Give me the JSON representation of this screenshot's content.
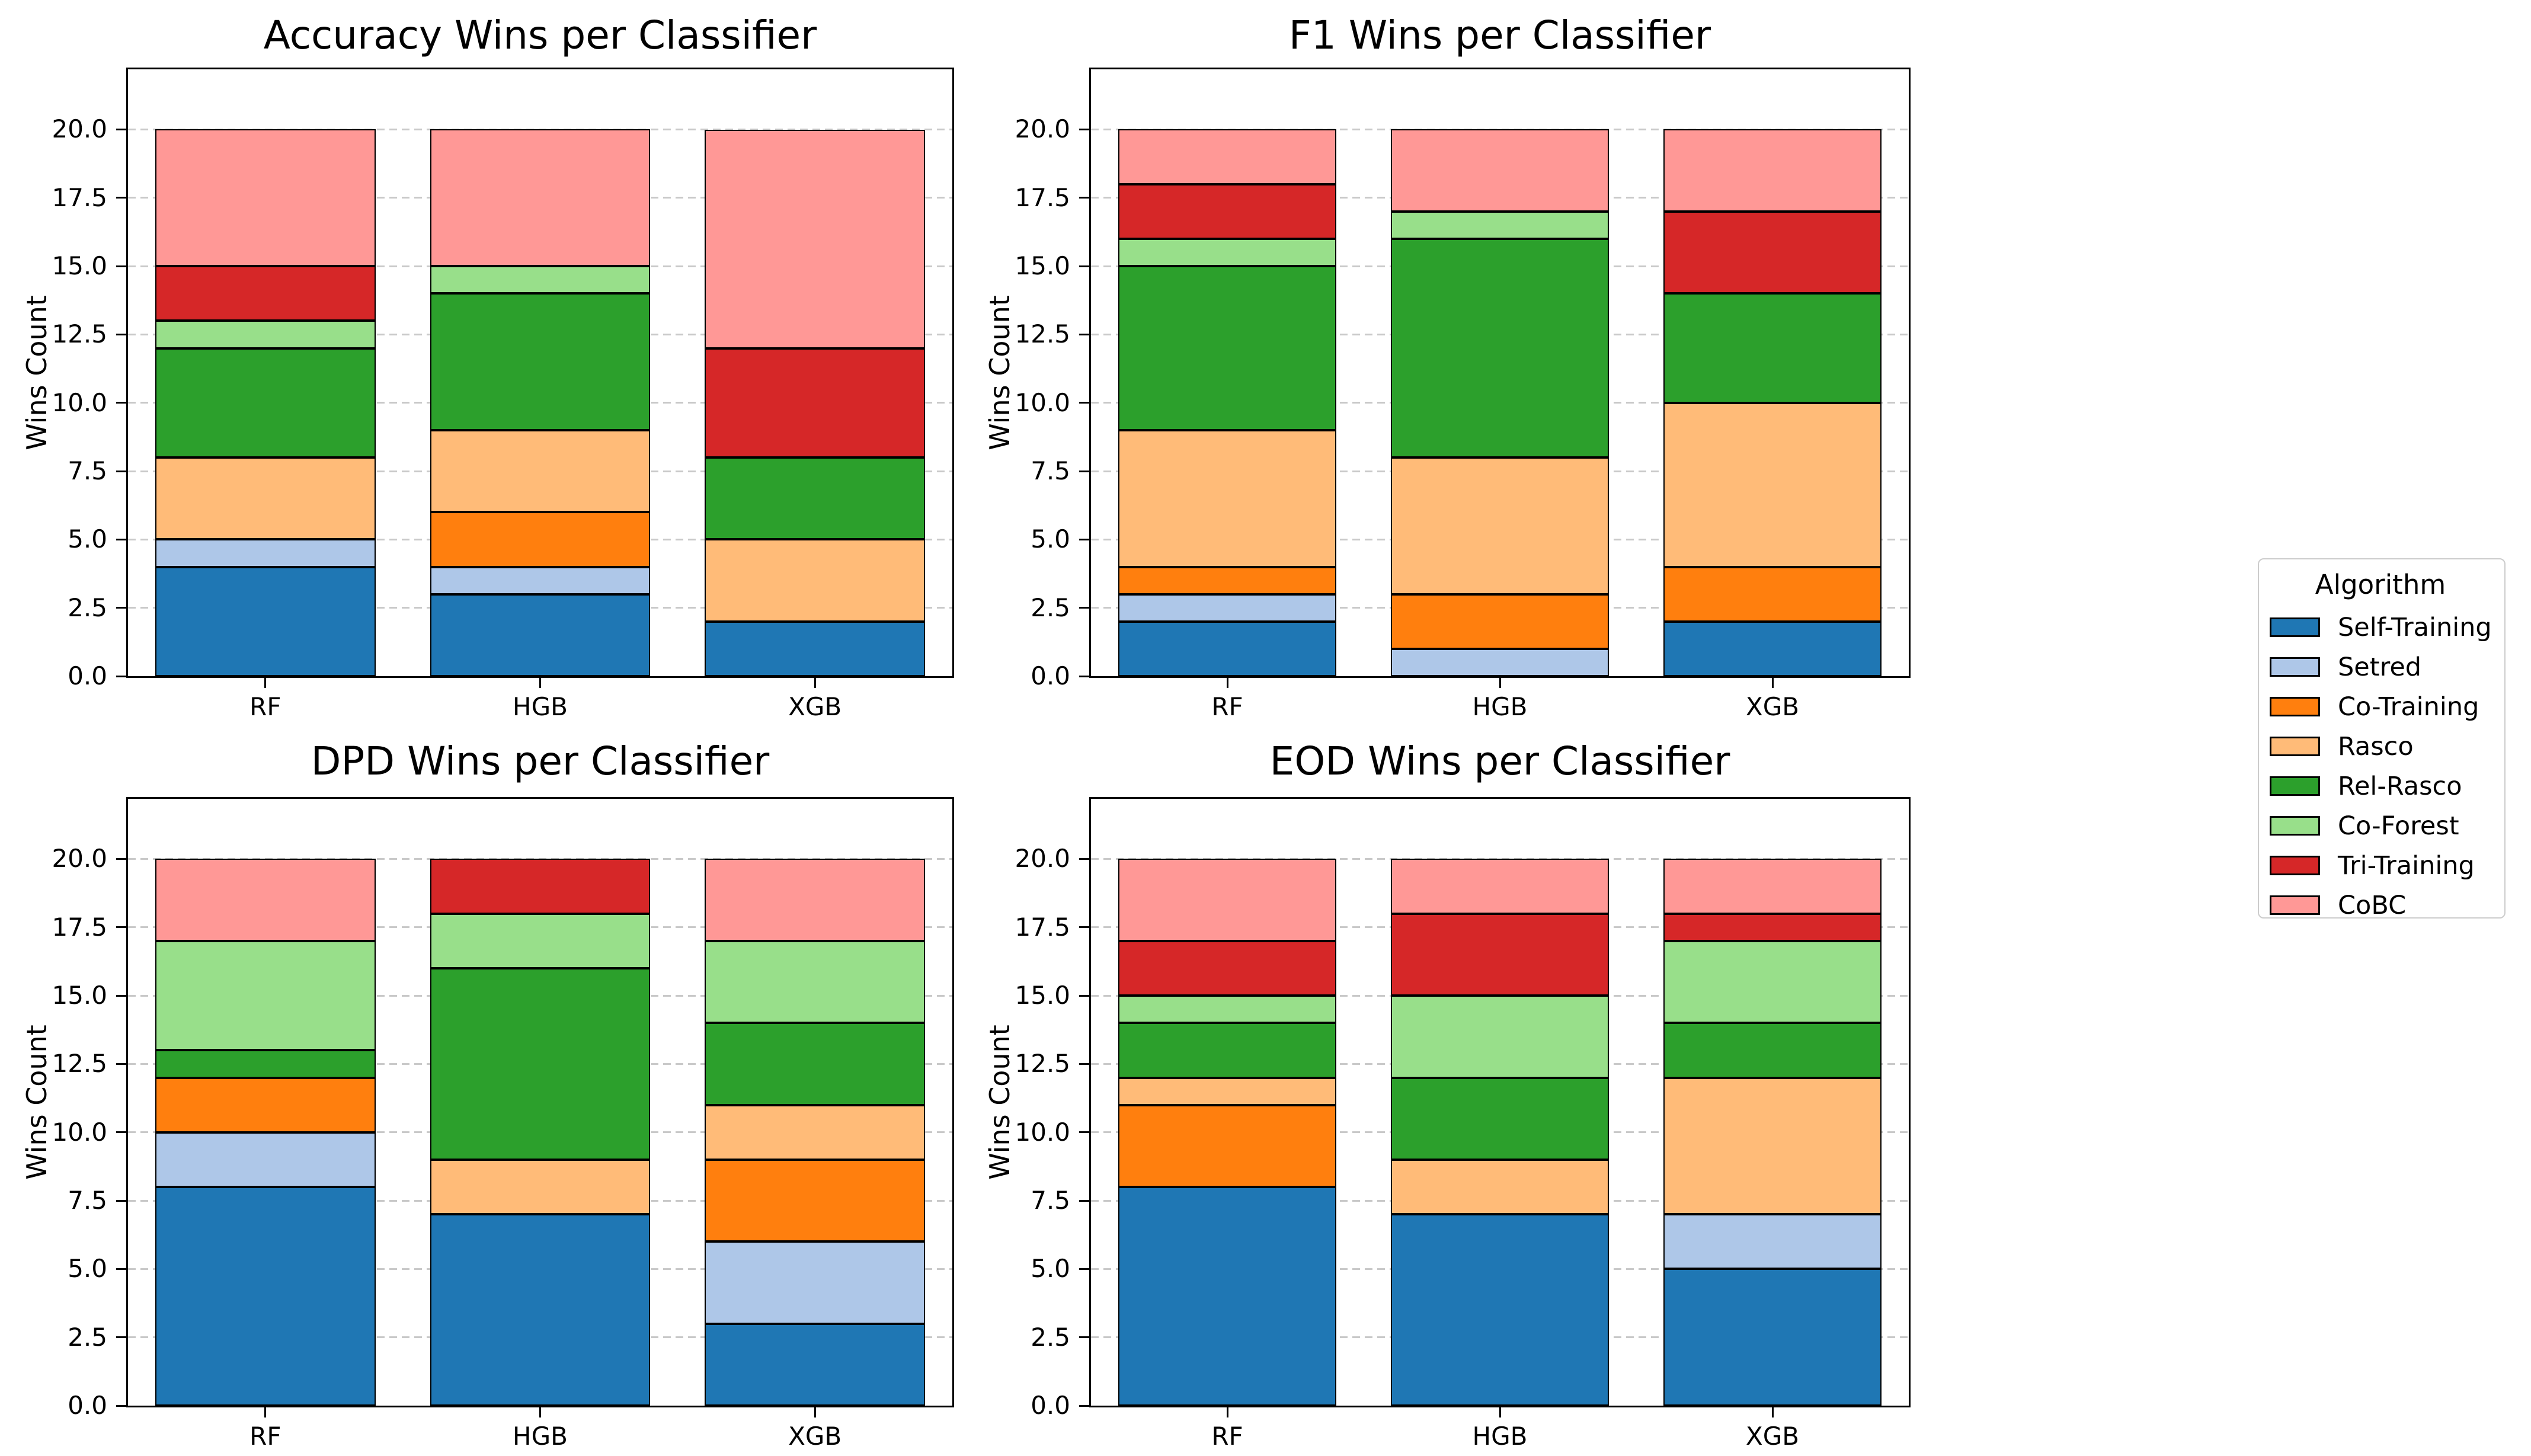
{
  "figure": {
    "background": "#ffffff"
  },
  "legend": {
    "title": "Algorithm",
    "position": "right-of-charts",
    "entries": [
      {
        "name": "Self-Training",
        "color": "#1f77b4"
      },
      {
        "name": "Setred",
        "color": "#aec7e8"
      },
      {
        "name": "Co-Training",
        "color": "#ff7f0e"
      },
      {
        "name": "Rasco",
        "color": "#ffbb78"
      },
      {
        "name": "Rel-Rasco",
        "color": "#2ca02c"
      },
      {
        "name": "Co-Forest",
        "color": "#98df8a"
      },
      {
        "name": "Tri-Training",
        "color": "#d62728"
      },
      {
        "name": "CoBC",
        "color": "#ff9896"
      }
    ]
  },
  "chart_data": [
    {
      "id": "accuracy",
      "type": "bar",
      "stacked": true,
      "title": "Accuracy Wins per Classifier",
      "xlabel": "",
      "ylabel": "Wins Count",
      "categories": [
        "RF",
        "HGB",
        "XGB"
      ],
      "ylim": [
        0,
        22.2
      ],
      "yticks": [
        "0.0",
        "2.5",
        "5.0",
        "7.5",
        "10.0",
        "12.5",
        "15.0",
        "17.5",
        "20.0"
      ],
      "grid": "dashed-horizontal",
      "series": [
        {
          "name": "Self-Training",
          "color": "#1f77b4",
          "values": [
            4,
            3,
            2
          ]
        },
        {
          "name": "Setred",
          "color": "#aec7e8",
          "values": [
            1,
            1,
            0
          ]
        },
        {
          "name": "Co-Training",
          "color": "#ff7f0e",
          "values": [
            0,
            2,
            0
          ]
        },
        {
          "name": "Rasco",
          "color": "#ffbb78",
          "values": [
            3,
            3,
            3
          ]
        },
        {
          "name": "Rel-Rasco",
          "color": "#2ca02c",
          "values": [
            4,
            5,
            3
          ]
        },
        {
          "name": "Co-Forest",
          "color": "#98df8a",
          "values": [
            1,
            1,
            0
          ]
        },
        {
          "name": "Tri-Training",
          "color": "#d62728",
          "values": [
            2,
            0,
            4
          ]
        },
        {
          "name": "CoBC",
          "color": "#ff9896",
          "values": [
            5,
            5,
            8
          ]
        }
      ]
    },
    {
      "id": "f1",
      "type": "bar",
      "stacked": true,
      "title": "F1 Wins per Classifier",
      "xlabel": "",
      "ylabel": "Wins Count",
      "categories": [
        "RF",
        "HGB",
        "XGB"
      ],
      "ylim": [
        0,
        22.2
      ],
      "yticks": [
        "0.0",
        "2.5",
        "5.0",
        "7.5",
        "10.0",
        "12.5",
        "15.0",
        "17.5",
        "20.0"
      ],
      "grid": "dashed-horizontal",
      "series": [
        {
          "name": "Self-Training",
          "color": "#1f77b4",
          "values": [
            2,
            0,
            2
          ]
        },
        {
          "name": "Setred",
          "color": "#aec7e8",
          "values": [
            1,
            1,
            0
          ]
        },
        {
          "name": "Co-Training",
          "color": "#ff7f0e",
          "values": [
            1,
            2,
            2
          ]
        },
        {
          "name": "Rasco",
          "color": "#ffbb78",
          "values": [
            5,
            5,
            6
          ]
        },
        {
          "name": "Rel-Rasco",
          "color": "#2ca02c",
          "values": [
            6,
            8,
            4
          ]
        },
        {
          "name": "Co-Forest",
          "color": "#98df8a",
          "values": [
            1,
            1,
            0
          ]
        },
        {
          "name": "Tri-Training",
          "color": "#d62728",
          "values": [
            2,
            0,
            3
          ]
        },
        {
          "name": "CoBC",
          "color": "#ff9896",
          "values": [
            2,
            3,
            3
          ]
        }
      ]
    },
    {
      "id": "dpd",
      "type": "bar",
      "stacked": true,
      "title": "DPD Wins per Classifier",
      "xlabel": "",
      "ylabel": "Wins Count",
      "categories": [
        "RF",
        "HGB",
        "XGB"
      ],
      "ylim": [
        0,
        22.2
      ],
      "yticks": [
        "0.0",
        "2.5",
        "5.0",
        "7.5",
        "10.0",
        "12.5",
        "15.0",
        "17.5",
        "20.0"
      ],
      "grid": "dashed-horizontal",
      "series": [
        {
          "name": "Self-Training",
          "color": "#1f77b4",
          "values": [
            8,
            7,
            3
          ]
        },
        {
          "name": "Setred",
          "color": "#aec7e8",
          "values": [
            2,
            0,
            3
          ]
        },
        {
          "name": "Co-Training",
          "color": "#ff7f0e",
          "values": [
            2,
            0,
            3
          ]
        },
        {
          "name": "Rasco",
          "color": "#ffbb78",
          "values": [
            0,
            2,
            2
          ]
        },
        {
          "name": "Rel-Rasco",
          "color": "#2ca02c",
          "values": [
            1,
            7,
            3
          ]
        },
        {
          "name": "Co-Forest",
          "color": "#98df8a",
          "values": [
            4,
            2,
            3
          ]
        },
        {
          "name": "Tri-Training",
          "color": "#d62728",
          "values": [
            0,
            2,
            0
          ]
        },
        {
          "name": "CoBC",
          "color": "#ff9896",
          "values": [
            3,
            0,
            3
          ]
        }
      ]
    },
    {
      "id": "eod",
      "type": "bar",
      "stacked": true,
      "title": "EOD Wins per Classifier",
      "xlabel": "",
      "ylabel": "Wins Count",
      "categories": [
        "RF",
        "HGB",
        "XGB"
      ],
      "ylim": [
        0,
        22.2
      ],
      "yticks": [
        "0.0",
        "2.5",
        "5.0",
        "7.5",
        "10.0",
        "12.5",
        "15.0",
        "17.5",
        "20.0"
      ],
      "grid": "dashed-horizontal",
      "series": [
        {
          "name": "Self-Training",
          "color": "#1f77b4",
          "values": [
            8,
            7,
            5
          ]
        },
        {
          "name": "Setred",
          "color": "#aec7e8",
          "values": [
            0,
            0,
            2
          ]
        },
        {
          "name": "Co-Training",
          "color": "#ff7f0e",
          "values": [
            3,
            0,
            0
          ]
        },
        {
          "name": "Rasco",
          "color": "#ffbb78",
          "values": [
            1,
            2,
            5
          ]
        },
        {
          "name": "Rel-Rasco",
          "color": "#2ca02c",
          "values": [
            2,
            3,
            2
          ]
        },
        {
          "name": "Co-Forest",
          "color": "#98df8a",
          "values": [
            1,
            3,
            3
          ]
        },
        {
          "name": "Tri-Training",
          "color": "#d62728",
          "values": [
            2,
            3,
            1
          ]
        },
        {
          "name": "CoBC",
          "color": "#ff9896",
          "values": [
            3,
            2,
            2
          ]
        }
      ]
    }
  ]
}
